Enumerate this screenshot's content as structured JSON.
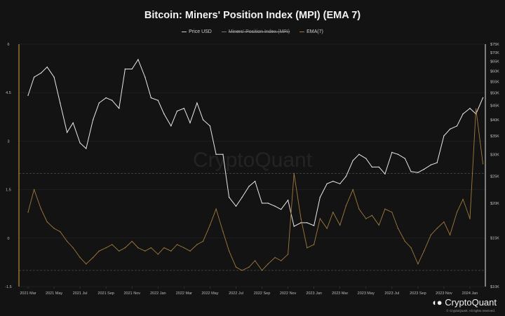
{
  "chart_data": {
    "type": "line",
    "title": "Bitcoin: Miners' Position Index (MPI) (EMA 7)",
    "legend": [
      "Price USD",
      "Miners' Position Index (MPI)",
      "EMA(7)"
    ],
    "legend_placement": "top-center",
    "y_left": {
      "ticks": [
        "6",
        "4.5",
        "3",
        "1.5",
        "0",
        "-1.5"
      ],
      "values": [
        6,
        4.5,
        3,
        1.5,
        0,
        -1.5
      ],
      "range": [
        -1.5,
        6
      ]
    },
    "y_right": {
      "scale": "log",
      "ticks": [
        "$75K",
        "$70K",
        "$65K",
        "$60K",
        "$55K",
        "$50K",
        "$45K",
        "$40K",
        "$35K",
        "$30K",
        "$25K",
        "$20K",
        "$15K",
        "$10K"
      ],
      "values": [
        75,
        70,
        65,
        60,
        55,
        50,
        45,
        40,
        35,
        30,
        25,
        20,
        15,
        10
      ],
      "range": [
        10,
        75
      ]
    },
    "x_ticks": [
      "2021 Mar",
      "2021 May",
      "2021 Jul",
      "2021 Sep",
      "2021 Nov",
      "2022 Jan",
      "2022 Mar",
      "2022 May",
      "2022 Jul",
      "2022 Sep",
      "2022 Nov",
      "2023 Jan",
      "2023 Mar",
      "2023 May",
      "2023 Jul",
      "2023 Sep",
      "2023 Nov",
      "2024 Jan"
    ],
    "reference_lines": [
      2,
      -1
    ],
    "x": [
      "2021-03-01",
      "2021-03-15",
      "2021-04-01",
      "2021-04-15",
      "2021-05-01",
      "2021-05-15",
      "2021-06-01",
      "2021-06-15",
      "2021-07-01",
      "2021-07-15",
      "2021-08-01",
      "2021-08-15",
      "2021-09-01",
      "2021-09-15",
      "2021-10-01",
      "2021-10-15",
      "2021-11-01",
      "2021-11-15",
      "2021-12-01",
      "2021-12-15",
      "2022-01-01",
      "2022-01-15",
      "2022-02-01",
      "2022-02-15",
      "2022-03-01",
      "2022-03-15",
      "2022-04-01",
      "2022-04-15",
      "2022-05-01",
      "2022-05-15",
      "2022-06-01",
      "2022-06-15",
      "2022-07-01",
      "2022-07-15",
      "2022-08-01",
      "2022-08-15",
      "2022-09-01",
      "2022-09-15",
      "2022-10-01",
      "2022-10-15",
      "2022-11-01",
      "2022-11-15",
      "2022-12-01",
      "2022-12-15",
      "2023-01-01",
      "2023-01-15",
      "2023-02-01",
      "2023-02-15",
      "2023-03-01",
      "2023-03-15",
      "2023-04-01",
      "2023-04-15",
      "2023-05-01",
      "2023-05-15",
      "2023-06-01",
      "2023-06-15",
      "2023-07-01",
      "2023-07-15",
      "2023-08-01",
      "2023-08-15",
      "2023-09-01",
      "2023-09-15",
      "2023-10-01",
      "2023-10-15",
      "2023-11-01",
      "2023-11-15",
      "2023-12-01",
      "2023-12-15",
      "2024-01-01",
      "2024-01-15",
      "2024-02-01"
    ],
    "series": [
      {
        "name": "Price USD",
        "axis": "right",
        "unit": "K USD",
        "color": "#e8e8e8",
        "values": [
          49,
          57,
          59,
          62,
          57,
          46,
          36,
          39,
          33,
          31.5,
          40,
          46,
          48,
          47,
          44,
          61,
          61,
          66,
          57,
          48,
          47,
          42,
          38,
          43,
          44,
          39,
          46,
          40,
          38,
          30,
          30,
          21,
          19.5,
          21,
          23,
          24,
          20,
          20,
          19.5,
          19,
          20.5,
          16.5,
          17,
          17,
          16.6,
          21,
          23.5,
          24,
          23.5,
          25,
          28.5,
          30,
          29,
          27,
          27,
          25.5,
          30.5,
          30,
          29,
          26,
          25.8,
          26.5,
          27.5,
          28,
          35,
          37,
          38,
          42,
          44,
          42,
          48
        ]
      },
      {
        "name": "EMA(7)",
        "axis": "left",
        "color": "#a07a3c",
        "values": [
          0.8,
          1.5,
          0.9,
          0.5,
          0.3,
          0.2,
          -0.1,
          -0.3,
          -0.6,
          -0.8,
          -0.6,
          -0.4,
          -0.3,
          -0.2,
          -0.4,
          -0.3,
          -0.1,
          -0.3,
          -0.4,
          -0.3,
          -0.5,
          -0.3,
          -0.4,
          -0.2,
          -0.3,
          -0.4,
          -0.2,
          -0.1,
          0.4,
          0.9,
          0.2,
          -0.4,
          -0.9,
          -1.0,
          -0.9,
          -0.7,
          -1.0,
          -0.8,
          -0.6,
          -0.7,
          -0.5,
          2.0,
          0.6,
          -0.3,
          -0.2,
          0.6,
          0.3,
          0.8,
          0.4,
          1.0,
          1.5,
          0.9,
          0.6,
          0.7,
          0.4,
          0.9,
          0.8,
          0.3,
          -0.1,
          -0.3,
          -0.8,
          -0.4,
          0.1,
          0.3,
          0.5,
          0.1,
          0.8,
          1.2,
          0.6,
          4.0,
          2.3
        ]
      }
    ]
  },
  "watermark": "CryptoQuant",
  "logo": "CryptoQuant",
  "copyright": "© CryptoQuant. All rights reserved."
}
